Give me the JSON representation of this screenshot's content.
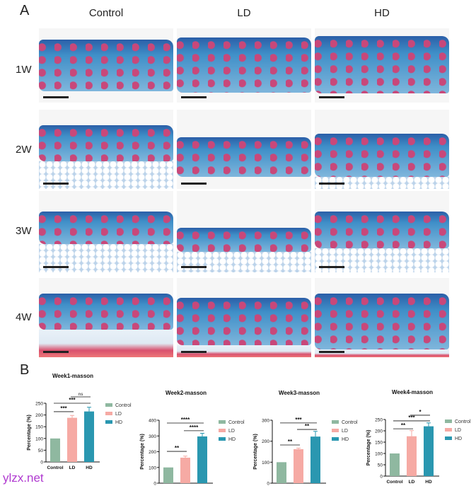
{
  "figure": {
    "panel_a_label": "A",
    "panel_b_label": "B",
    "columns": [
      "Control",
      "LD",
      "HD"
    ],
    "rows": [
      "1W",
      "2W",
      "3W",
      "4W"
    ],
    "watermark": "ylzx.net"
  },
  "colors": {
    "Control": "#8fb8a0",
    "LD": "#f6aaa4",
    "HD": "#2a97b0",
    "stain_blue": "#3f8fc8",
    "stain_red": "#c8487a"
  },
  "chart_data": [
    {
      "type": "bar",
      "title": "Week1-masson",
      "categories": [
        "Control",
        "LD",
        "HD"
      ],
      "values": [
        100,
        188,
        215
      ],
      "errors": [
        0,
        10,
        18
      ],
      "ylabel": "Percentage (%)",
      "ylim": [
        0,
        250
      ],
      "yticks": [
        0,
        50,
        100,
        150,
        200,
        250
      ],
      "legend": [
        "Control",
        "LD",
        "HD"
      ],
      "legend_position": "right",
      "significance": [
        {
          "from": 0,
          "to": 1,
          "label": "***",
          "y": 214
        },
        {
          "from": 0,
          "to": 2,
          "label": "***",
          "y": 250
        },
        {
          "from": 1,
          "to": 2,
          "label": "ns",
          "y": 277
        }
      ]
    },
    {
      "type": "bar",
      "title": "Week2-masson",
      "categories": [
        "Control",
        "LD",
        "HD"
      ],
      "values": [
        100,
        162,
        297
      ],
      "errors": [
        0,
        10,
        20
      ],
      "ylabel": "Percentage (%)",
      "ylim": [
        0,
        400
      ],
      "yticks": [
        0,
        100,
        200,
        300,
        400
      ],
      "legend": [
        "Control",
        "LD",
        "HD"
      ],
      "legend_position": "right",
      "significance": [
        {
          "from": 0,
          "to": 1,
          "label": "**",
          "y": 202
        },
        {
          "from": 1,
          "to": 2,
          "label": "****",
          "y": 333
        },
        {
          "from": 0,
          "to": 2,
          "label": "****",
          "y": 382
        }
      ]
    },
    {
      "type": "bar",
      "title": "Week3-masson",
      "categories": [
        "Control",
        "LD",
        "HD"
      ],
      "values": [
        100,
        162,
        222
      ],
      "errors": [
        0,
        5,
        25
      ],
      "ylabel": "Percentage (%)",
      "ylim": [
        0,
        300
      ],
      "yticks": [
        0,
        100,
        200,
        300
      ],
      "legend": [
        "Control",
        "LD",
        "HD"
      ],
      "legend_position": "right",
      "significance": [
        {
          "from": 0,
          "to": 1,
          "label": "**",
          "y": 182
        },
        {
          "from": 1,
          "to": 2,
          "label": "**",
          "y": 256
        },
        {
          "from": 0,
          "to": 2,
          "label": "***",
          "y": 287
        }
      ]
    },
    {
      "type": "bar",
      "title": "Week4-masson",
      "categories": [
        "Control",
        "LD",
        "HD"
      ],
      "values": [
        100,
        176,
        220
      ],
      "errors": [
        0,
        25,
        15
      ],
      "ylabel": "Percentage (%)",
      "ylim": [
        0,
        250
      ],
      "yticks": [
        0,
        50,
        100,
        150,
        200,
        250
      ],
      "legend": [
        "Control",
        "LD",
        "HD"
      ],
      "legend_position": "right",
      "significance": [
        {
          "from": 0,
          "to": 1,
          "label": "**",
          "y": 209
        },
        {
          "from": 0,
          "to": 2,
          "label": "***",
          "y": 244
        },
        {
          "from": 1,
          "to": 2,
          "label": "*",
          "y": 269
        }
      ]
    }
  ]
}
